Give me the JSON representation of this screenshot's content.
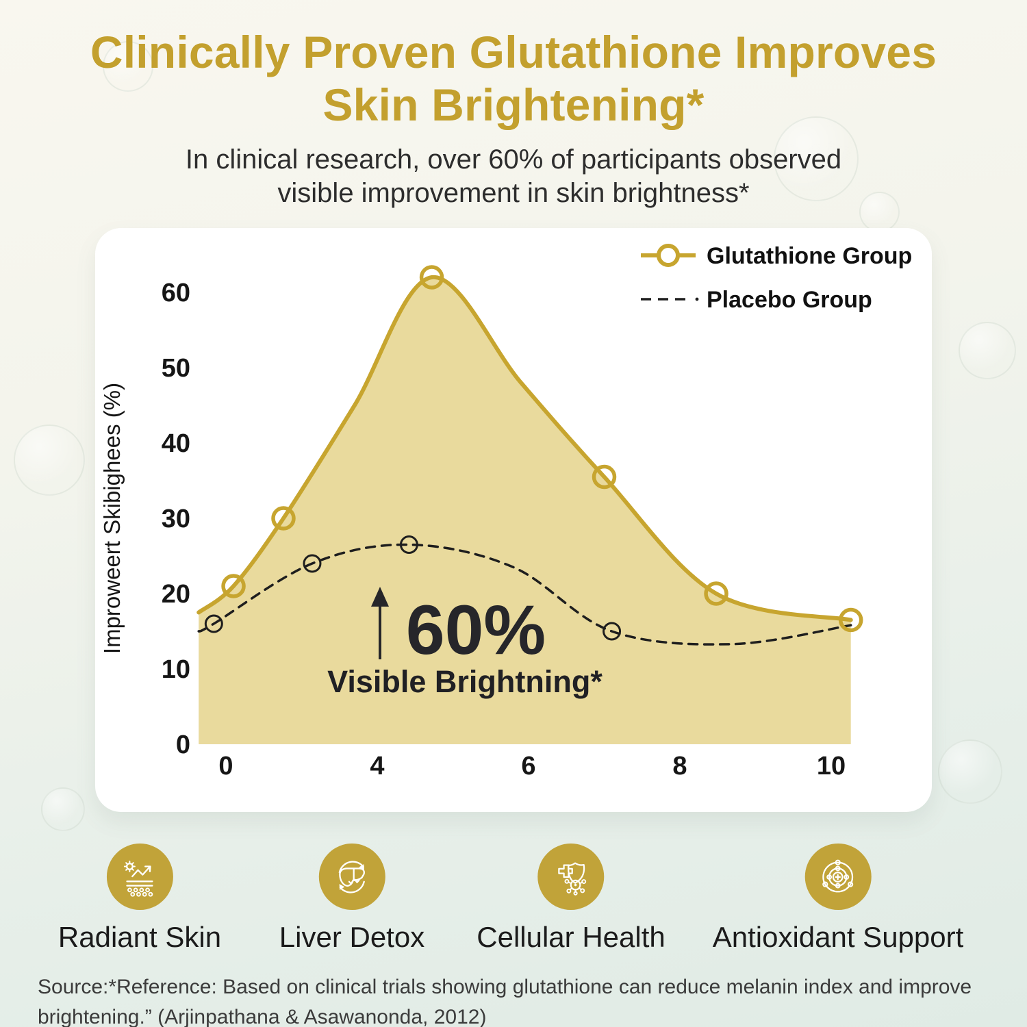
{
  "header": {
    "title_line1": "Clinically Proven Glutathione Improves",
    "title_line2": "Skin Brightening*",
    "subtitle_line1": "In clinical research, over 60% of participants observed",
    "subtitle_line2": "visible improvement in skin brightness*"
  },
  "chart_data": {
    "type": "line",
    "title": "",
    "xlabel": "",
    "ylabel": "Improweert Skibighees (%)",
    "ylim": [
      0,
      65
    ],
    "y_ticks": [
      0,
      10,
      20,
      30,
      40,
      50,
      60
    ],
    "x_tick_labels": [
      "0",
      "4",
      "6",
      "8",
      "10"
    ],
    "grid": false,
    "legend_position": "top-right",
    "point_note": "points are [x_slot, percent, marker]; x slots map onto the evenly spaced x tick labels 0,4,6,8,10",
    "series": [
      {
        "name": "Glutathione Group",
        "style": "solid",
        "color": "#c7a52f",
        "fill_color": "#e9da9d",
        "filled": true,
        "points": [
          [
            -0.18,
            17.5,
            0
          ],
          [
            0.05,
            21,
            1
          ],
          [
            0.38,
            30,
            1
          ],
          [
            0.85,
            45,
            0
          ],
          [
            1.36,
            62,
            1
          ],
          [
            1.95,
            48,
            0
          ],
          [
            2.5,
            35.5,
            1
          ],
          [
            3.24,
            20,
            1
          ],
          [
            4.13,
            16.5,
            1
          ]
        ]
      },
      {
        "name": "Placebo Group",
        "style": "dashed",
        "color": "#1e1e1e",
        "filled": false,
        "points": [
          [
            -0.18,
            15,
            0
          ],
          [
            -0.08,
            16,
            1
          ],
          [
            0.57,
            24,
            1
          ],
          [
            1.21,
            26.5,
            1
          ],
          [
            1.9,
            23.5,
            0
          ],
          [
            2.55,
            15,
            1
          ],
          [
            3.35,
            13.3,
            0
          ],
          [
            4.13,
            15.8,
            0
          ]
        ]
      }
    ],
    "annotation": {
      "headline": "60%",
      "subtext": "Visible Brightning*",
      "arrow": "up"
    }
  },
  "features": [
    {
      "label": "Radiant Skin",
      "icon": "radiant-skin-icon"
    },
    {
      "label": "Liver Detox",
      "icon": "liver-detox-icon"
    },
    {
      "label": "Cellular Health",
      "icon": "cellular-health-icon"
    },
    {
      "label": "Antioxidant Support",
      "icon": "antioxidant-support-icon"
    }
  ],
  "source": {
    "line1": "Source:*Reference: Based on clinical trials showing glutathione can reduce melanin index and improve",
    "line2": "brightening.” (Arjinpathana & Asawanonda, 2012)"
  },
  "colors": {
    "accent_gold": "#c3a02e",
    "chart_line_gold": "#c7a52f",
    "chart_fill": "#e9da9d",
    "placebo_black": "#1e1e1e",
    "icon_circle_gold": "#c1a339",
    "text_dark": "#1b1b1b"
  }
}
